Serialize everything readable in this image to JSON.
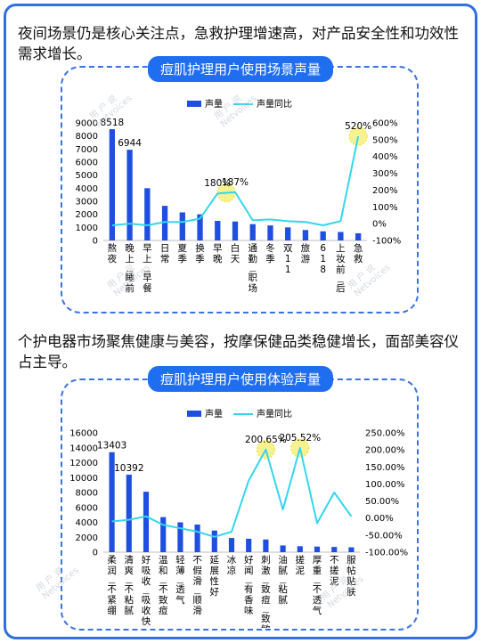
{
  "colors": {
    "frame": "#2f6fe0",
    "panel_title_bg": "#1f6ef0",
    "bar": "#1f4fe0",
    "line": "#33d6ee",
    "highlight": "#f2e84a"
  },
  "section1": {
    "heading": "夜间场景仍是核心关注点，急救护理增速高，对产品安全性和功效性需求增长。"
  },
  "section2": {
    "heading": "个护电器市场聚焦健康与美容，按摩保健品类稳健增长，面部美容仪占主导。"
  },
  "watermarks": [
    "用 户 说",
    "Netvoices"
  ],
  "chart_data": [
    {
      "type": "bar",
      "title": "痘肌护理用户使用场景声量",
      "legend": {
        "bar": "声量",
        "line": "声量同比",
        "placement": "top-center"
      },
      "categories": [
        "熬夜",
        "晚上/睡前",
        "早上/早餐",
        "日常",
        "夏季",
        "换季",
        "早晚",
        "白天",
        "通勤/职场",
        "冬季",
        "双11",
        "旅游",
        "618",
        "上妆前/后",
        "急救"
      ],
      "series": [
        {
          "name": "声量",
          "type": "bar",
          "axis": "left",
          "values": [
            8518,
            6944,
            4000,
            2650,
            2150,
            2000,
            1500,
            1450,
            1250,
            1150,
            1000,
            800,
            700,
            650,
            550
          ]
        },
        {
          "name": "声量同比",
          "type": "line",
          "axis": "right",
          "values": [
            -10,
            0,
            -10,
            10,
            10,
            30,
            180,
            187,
            20,
            25,
            15,
            10,
            -10,
            15,
            520
          ]
        }
      ],
      "bar_labels": [
        {
          "index": 0,
          "text": "8518"
        },
        {
          "index": 1,
          "text": "6944"
        }
      ],
      "line_labels": [
        {
          "index": 6,
          "text": "180%"
        },
        {
          "index": 7,
          "text": "187%"
        },
        {
          "index": 14,
          "text": "520%"
        }
      ],
      "highlights": [
        6.5,
        14
      ],
      "yLeft": {
        "min": 0,
        "max": 9000,
        "ticks": [
          "9000",
          "8000",
          "7000",
          "6000",
          "5000",
          "4000",
          "3000",
          "2000",
          "1000",
          "0"
        ]
      },
      "yRight": {
        "min": -100,
        "max": 600,
        "ticks": [
          "600%",
          "500%",
          "400%",
          "300%",
          "200%",
          "100%",
          "0%",
          "-100%"
        ]
      },
      "grid": false
    },
    {
      "type": "bar",
      "title": "痘肌护理用户使用体验声量",
      "legend": {
        "bar": "声量",
        "line": "声量同比",
        "placement": "top-center"
      },
      "categories": [
        "柔润/不紧绷",
        "清爽/不粘腻",
        "好吸收/吸收快",
        "温和/不致痘",
        "轻薄/透气",
        "不假滑/顺滑",
        "延展性好",
        "冰凉",
        "好闻/有香味",
        "刺激/致痘/致敏",
        "油腻/粘腻",
        "搓泥",
        "厚重/不透气",
        "不搓泥",
        "服帖贴肤"
      ],
      "series": [
        {
          "name": "声量",
          "type": "bar",
          "axis": "left",
          "values": [
            13403,
            10392,
            8100,
            4700,
            4000,
            3700,
            2900,
            1900,
            1800,
            1700,
            900,
            800,
            750,
            700,
            650
          ]
        },
        {
          "name": "声量同比",
          "type": "line",
          "axis": "right",
          "values": [
            -10,
            -5,
            5,
            -20,
            -30,
            -40,
            -55,
            -40,
            110,
            200.65,
            25,
            205.52,
            -15,
            75,
            5
          ]
        }
      ],
      "bar_labels": [
        {
          "index": 0,
          "text": "13403"
        },
        {
          "index": 1,
          "text": "10392"
        }
      ],
      "line_labels": [
        {
          "index": 9,
          "text": "200.65%"
        },
        {
          "index": 11,
          "text": "205.52%"
        }
      ],
      "highlights": [
        9,
        11
      ],
      "yLeft": {
        "min": 0,
        "max": 16000,
        "ticks": [
          "16000",
          "14000",
          "12000",
          "10000",
          "8000",
          "6000",
          "4000",
          "2000",
          "0"
        ]
      },
      "yRight": {
        "min": -100,
        "max": 250,
        "ticks": [
          "250.00%",
          "200.00%",
          "150.00%",
          "100.00%",
          "50.00%",
          "0.00%",
          "-50.00%",
          "-100.00%"
        ]
      },
      "grid": false
    }
  ]
}
